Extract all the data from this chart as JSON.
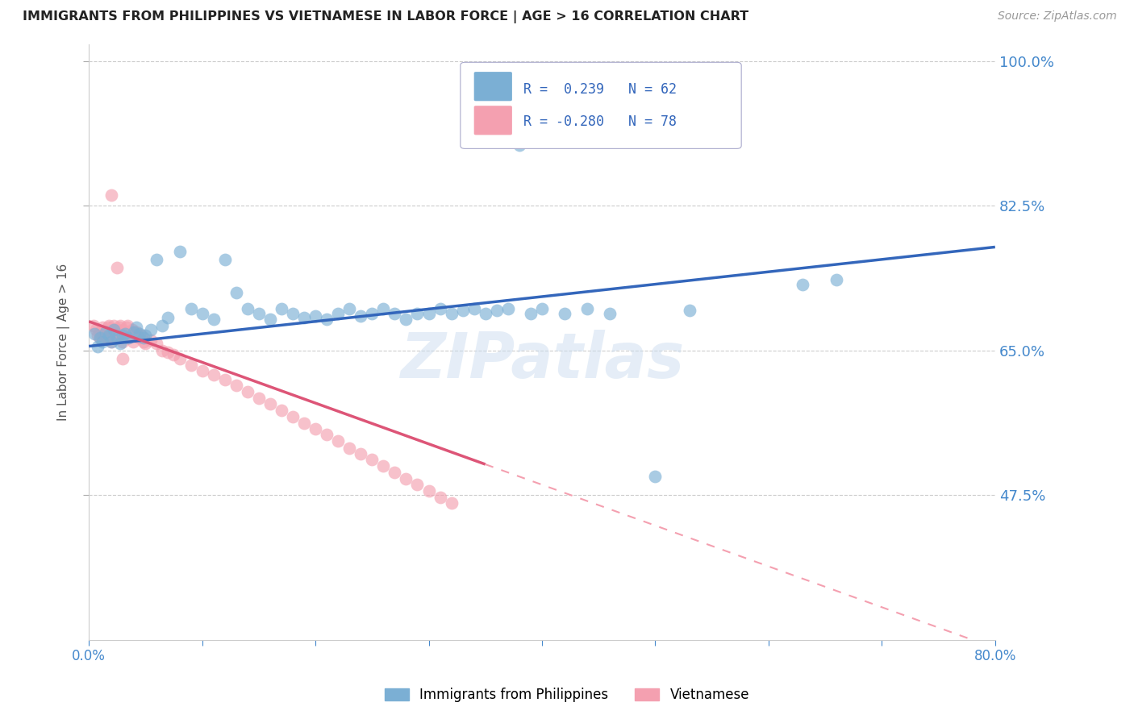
{
  "title": "IMMIGRANTS FROM PHILIPPINES VS VIETNAMESE IN LABOR FORCE | AGE > 16 CORRELATION CHART",
  "source": "Source: ZipAtlas.com",
  "ylabel": "In Labor Force | Age > 16",
  "x_min": 0.0,
  "x_max": 0.8,
  "y_min": 0.3,
  "y_max": 1.02,
  "x_tick_positions": [
    0.0,
    0.1,
    0.2,
    0.3,
    0.4,
    0.5,
    0.6,
    0.7,
    0.8
  ],
  "x_tick_labels": [
    "0.0%",
    "",
    "",
    "",
    "",
    "",
    "",
    "",
    "80.0%"
  ],
  "y_ticks": [
    0.475,
    0.65,
    0.825,
    1.0
  ],
  "y_tick_labels": [
    "47.5%",
    "65.0%",
    "82.5%",
    "100.0%"
  ],
  "philippines_R": 0.239,
  "philippines_N": 62,
  "vietnamese_R": -0.28,
  "vietnamese_N": 78,
  "philippines_color": "#7bafd4",
  "vietnamese_color": "#f4a0b0",
  "philippines_line_color": "#3366bb",
  "vietnamese_line_solid_color": "#dd5577",
  "vietnamese_line_dash_color": "#f4a0b0",
  "watermark": "ZIPatlas",
  "philippines_x": [
    0.005,
    0.008,
    0.01,
    0.012,
    0.015,
    0.018,
    0.02,
    0.022,
    0.025,
    0.028,
    0.03,
    0.032,
    0.035,
    0.04,
    0.042,
    0.045,
    0.048,
    0.05,
    0.055,
    0.06,
    0.065,
    0.07,
    0.08,
    0.09,
    0.1,
    0.11,
    0.12,
    0.13,
    0.14,
    0.15,
    0.16,
    0.17,
    0.18,
    0.19,
    0.2,
    0.21,
    0.22,
    0.23,
    0.24,
    0.25,
    0.26,
    0.27,
    0.28,
    0.29,
    0.3,
    0.31,
    0.32,
    0.33,
    0.34,
    0.35,
    0.36,
    0.37,
    0.38,
    0.39,
    0.4,
    0.42,
    0.44,
    0.46,
    0.5,
    0.53,
    0.63,
    0.66
  ],
  "philippines_y": [
    0.67,
    0.655,
    0.665,
    0.66,
    0.672,
    0.668,
    0.66,
    0.675,
    0.665,
    0.658,
    0.668,
    0.67,
    0.665,
    0.672,
    0.678,
    0.67,
    0.665,
    0.668,
    0.675,
    0.76,
    0.68,
    0.69,
    0.77,
    0.7,
    0.695,
    0.688,
    0.76,
    0.72,
    0.7,
    0.695,
    0.688,
    0.7,
    0.695,
    0.69,
    0.692,
    0.688,
    0.695,
    0.7,
    0.692,
    0.695,
    0.7,
    0.695,
    0.688,
    0.695,
    0.695,
    0.7,
    0.695,
    0.698,
    0.7,
    0.695,
    0.698,
    0.7,
    0.898,
    0.695,
    0.7,
    0.695,
    0.7,
    0.695,
    0.498,
    0.698,
    0.73,
    0.735
  ],
  "vietnamese_x": [
    0.004,
    0.006,
    0.008,
    0.01,
    0.01,
    0.012,
    0.013,
    0.014,
    0.015,
    0.016,
    0.017,
    0.018,
    0.018,
    0.019,
    0.02,
    0.02,
    0.021,
    0.022,
    0.022,
    0.023,
    0.024,
    0.025,
    0.025,
    0.026,
    0.027,
    0.028,
    0.028,
    0.029,
    0.03,
    0.03,
    0.031,
    0.032,
    0.033,
    0.034,
    0.035,
    0.036,
    0.037,
    0.038,
    0.039,
    0.04,
    0.042,
    0.044,
    0.046,
    0.048,
    0.05,
    0.055,
    0.06,
    0.065,
    0.07,
    0.075,
    0.08,
    0.09,
    0.1,
    0.11,
    0.12,
    0.13,
    0.14,
    0.15,
    0.16,
    0.17,
    0.18,
    0.19,
    0.2,
    0.21,
    0.22,
    0.23,
    0.24,
    0.25,
    0.26,
    0.27,
    0.28,
    0.29,
    0.3,
    0.31,
    0.32,
    0.02,
    0.025,
    0.03
  ],
  "vietnamese_y": [
    0.68,
    0.675,
    0.668,
    0.672,
    0.665,
    0.678,
    0.67,
    0.665,
    0.668,
    0.672,
    0.678,
    0.68,
    0.668,
    0.665,
    0.672,
    0.66,
    0.675,
    0.68,
    0.665,
    0.668,
    0.672,
    0.675,
    0.668,
    0.672,
    0.678,
    0.68,
    0.668,
    0.67,
    0.675,
    0.66,
    0.668,
    0.672,
    0.678,
    0.68,
    0.665,
    0.668,
    0.672,
    0.675,
    0.66,
    0.668,
    0.672,
    0.665,
    0.668,
    0.66,
    0.658,
    0.662,
    0.658,
    0.65,
    0.648,
    0.645,
    0.64,
    0.632,
    0.625,
    0.62,
    0.615,
    0.608,
    0.6,
    0.592,
    0.585,
    0.578,
    0.57,
    0.562,
    0.555,
    0.548,
    0.54,
    0.532,
    0.525,
    0.518,
    0.51,
    0.502,
    0.495,
    0.488,
    0.48,
    0.472,
    0.465,
    0.838,
    0.75,
    0.64
  ]
}
